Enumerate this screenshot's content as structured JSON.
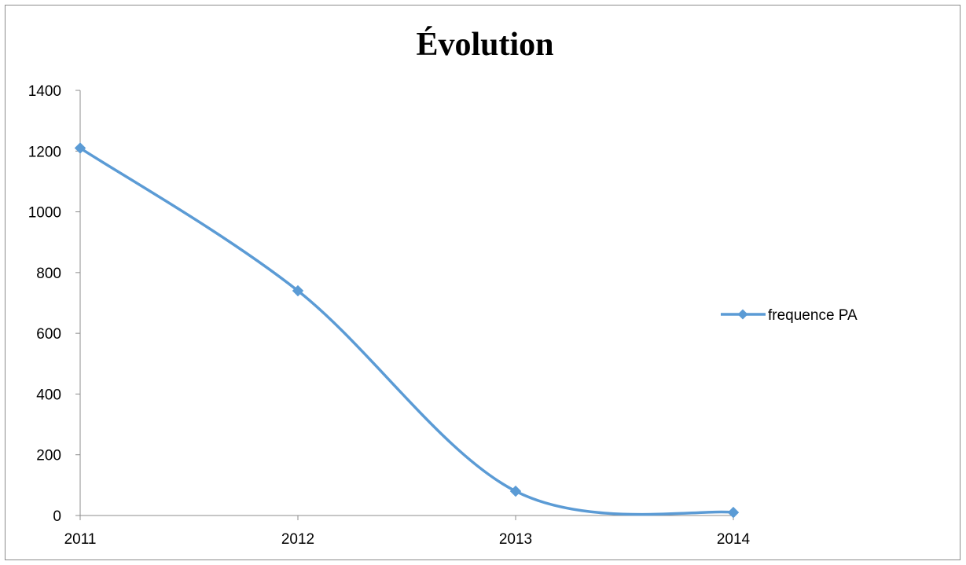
{
  "chart_data": {
    "type": "line",
    "title": "Évolution",
    "categories": [
      "2011",
      "2012",
      "2013",
      "2014"
    ],
    "series": [
      {
        "name": "frequence PA",
        "values": [
          1210,
          740,
          80,
          10
        ],
        "color": "#5b9bd5",
        "marker": "diamond",
        "smooth": true
      }
    ],
    "ylim": [
      0,
      1400
    ],
    "yticks": [
      "0",
      "200",
      "400",
      "600",
      "800",
      "1000",
      "1200",
      "1400"
    ],
    "grid": false,
    "legend": "right"
  }
}
